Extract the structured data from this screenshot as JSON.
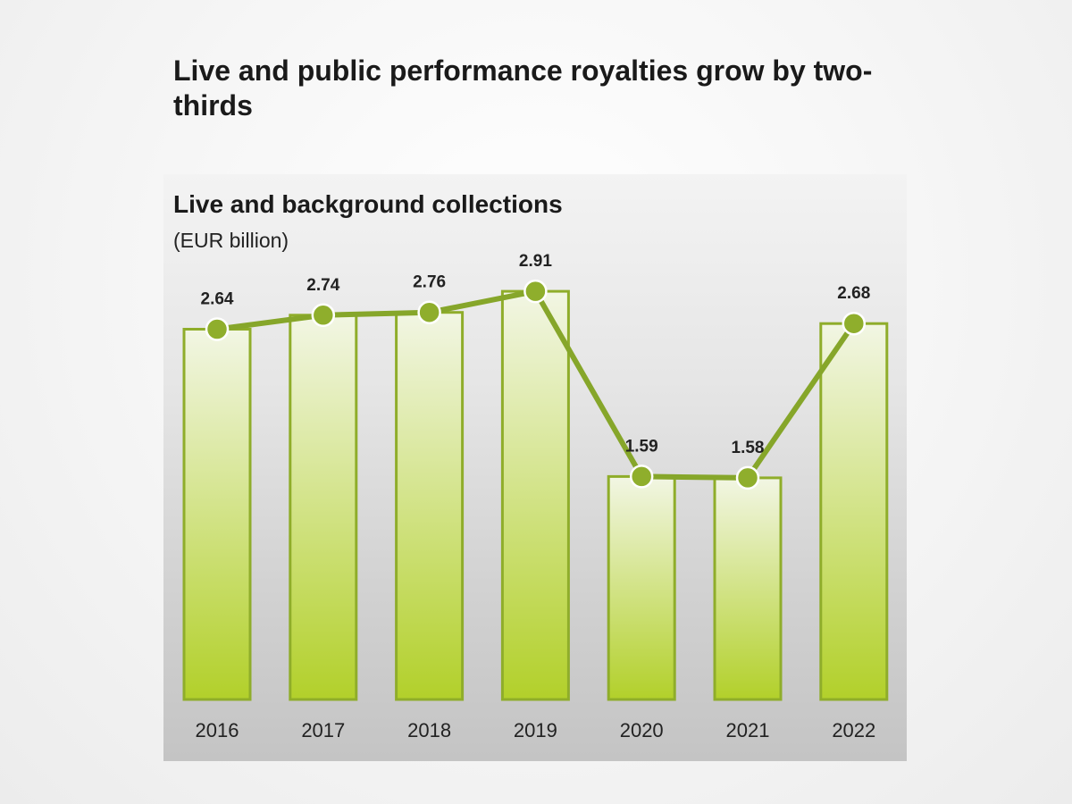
{
  "headline": "Live and public performance royalties grow by two-thirds",
  "chart_data": {
    "type": "bar",
    "title": "Live and background collections",
    "ylabel": "(EUR billion)",
    "xlabel": "",
    "categories": [
      "2016",
      "2017",
      "2018",
      "2019",
      "2020",
      "2021",
      "2022"
    ],
    "values": [
      2.64,
      2.74,
      2.76,
      2.91,
      1.59,
      1.58,
      2.68
    ],
    "data_labels": [
      "2.64",
      "2.74",
      "2.76",
      "2.91",
      "1.59",
      "1.58",
      "2.68"
    ],
    "overlay": "line",
    "ylim": [
      0,
      3.0
    ],
    "grid": false,
    "legend": "none",
    "colors": {
      "bar_fill_top": "#f2f6e4",
      "bar_fill_bottom": "#b2d02a",
      "bar_stroke": "#8fad2a",
      "line": "#86a62a",
      "marker": "#8fae2c",
      "marker_stroke": "#ffffff"
    }
  }
}
